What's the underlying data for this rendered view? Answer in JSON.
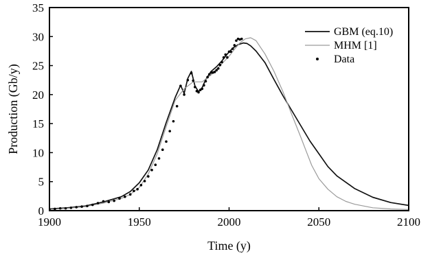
{
  "chart_data": {
    "type": "line",
    "title": "",
    "xlabel": "Time (y)",
    "ylabel": "Production (Gb/y)",
    "xlim": [
      1900,
      2100
    ],
    "ylim": [
      0,
      35
    ],
    "x_ticks": [
      1900,
      1950,
      2000,
      2050,
      2100
    ],
    "y_ticks": [
      0,
      5,
      10,
      15,
      20,
      25,
      30,
      35
    ],
    "grid": false,
    "legend_position": "top-right",
    "series": [
      {
        "name": "GBM (eq.10)",
        "style": "line",
        "color": "#111111",
        "x": [
          1900,
          1910,
          1920,
          1930,
          1940,
          1945,
          1950,
          1955,
          1960,
          1965,
          1970,
          1973,
          1975,
          1977,
          1979,
          1981,
          1983,
          1985,
          1987,
          1990,
          1993,
          1996,
          1999,
          2002,
          2005,
          2008,
          2010,
          2012,
          2015,
          2020,
          2025,
          2030,
          2035,
          2040,
          2045,
          2050,
          2055,
          2060,
          2070,
          2080,
          2090,
          2100
        ],
        "y": [
          0.3,
          0.5,
          0.8,
          1.5,
          2.4,
          3.3,
          4.8,
          7.0,
          10.5,
          15.2,
          19.5,
          21.6,
          20.2,
          22.8,
          24.0,
          21.5,
          20.5,
          21.2,
          22.6,
          24.0,
          24.8,
          25.8,
          27.0,
          28.0,
          28.6,
          28.9,
          28.8,
          28.4,
          27.5,
          25.5,
          22.6,
          19.8,
          17.2,
          14.6,
          12.0,
          9.8,
          7.6,
          6.0,
          3.8,
          2.3,
          1.4,
          0.9
        ]
      },
      {
        "name": "MHM [1]",
        "style": "line",
        "color": "#9a9a9a",
        "x": [
          1900,
          1910,
          1920,
          1930,
          1940,
          1945,
          1950,
          1955,
          1960,
          1965,
          1970,
          1975,
          1980,
          1985,
          1990,
          1995,
          2000,
          2003,
          2006,
          2009,
          2012,
          2015,
          2020,
          2025,
          2030,
          2035,
          2040,
          2043,
          2046,
          2050,
          2055,
          2060,
          2065,
          2070,
          2080,
          2090,
          2100
        ],
        "y": [
          0.2,
          0.4,
          0.7,
          1.3,
          2.1,
          2.8,
          4.0,
          6.3,
          9.8,
          14.5,
          19.0,
          21.0,
          22.2,
          22.2,
          23.4,
          25.0,
          26.6,
          27.8,
          28.9,
          29.6,
          29.8,
          29.3,
          27.0,
          24.0,
          20.5,
          16.5,
          12.6,
          10.2,
          7.8,
          5.5,
          3.7,
          2.4,
          1.6,
          1.1,
          0.5,
          0.3,
          0.2
        ]
      },
      {
        "name": "Data",
        "style": "points",
        "color": "#000000",
        "x": [
          1900,
          1903,
          1906,
          1909,
          1912,
          1915,
          1918,
          1921,
          1924,
          1927,
          1930,
          1933,
          1936,
          1939,
          1942,
          1945,
          1947,
          1949,
          1951,
          1953,
          1955,
          1957,
          1959,
          1961,
          1963,
          1965,
          1967,
          1969,
          1971,
          1973,
          1975,
          1977,
          1979,
          1980,
          1981,
          1982,
          1983,
          1984,
          1985,
          1986,
          1987,
          1988,
          1989,
          1990,
          1991,
          1992,
          1993,
          1994,
          1995,
          1996,
          1997,
          1998,
          1999,
          2000,
          2001,
          2002,
          2003,
          2004,
          2005,
          2006,
          2007
        ],
        "y": [
          0.2,
          0.3,
          0.4,
          0.4,
          0.5,
          0.6,
          0.7,
          0.8,
          1.0,
          1.3,
          1.6,
          1.5,
          1.7,
          2.1,
          2.4,
          2.8,
          3.4,
          3.7,
          4.4,
          5.1,
          5.9,
          7.0,
          7.9,
          9.0,
          10.5,
          11.9,
          13.7,
          15.4,
          18.0,
          21.5,
          20.0,
          22.5,
          23.7,
          22.4,
          21.3,
          20.6,
          20.4,
          20.8,
          21.0,
          21.6,
          22.3,
          23.0,
          23.5,
          23.8,
          23.8,
          23.9,
          24.2,
          24.5,
          25.1,
          25.6,
          26.4,
          26.9,
          26.4,
          27.4,
          27.4,
          27.9,
          28.5,
          29.3,
          29.6,
          29.5,
          29.6
        ]
      }
    ]
  }
}
